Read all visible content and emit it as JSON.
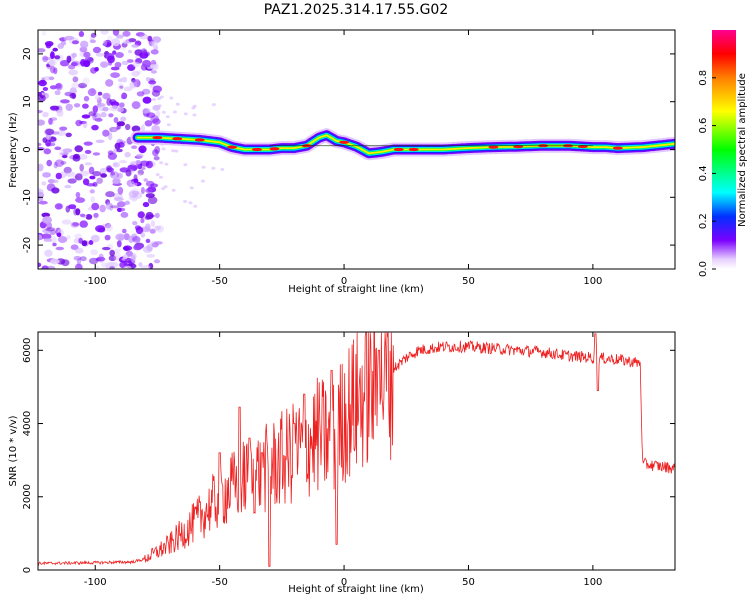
{
  "title": "PAZ1.2025.314.17.55.G02",
  "chart_data": [
    {
      "type": "heatmap",
      "name": "spectrogram",
      "xlabel": "Height of straight line (km)",
      "ylabel": "Frequency (Hz)",
      "xlim": [
        -123,
        133
      ],
      "ylim": [
        -25,
        25
      ],
      "xticks": [
        -100,
        -50,
        0,
        50,
        100
      ],
      "yticks": [
        -20,
        -10,
        0,
        10,
        20
      ],
      "xtick_labels": [
        "-100",
        "-50",
        "0",
        "50",
        "100"
      ],
      "ytick_labels": [
        "-20",
        "-10",
        "0",
        "10",
        "20"
      ],
      "ridge": {
        "description": "dominant spectral peak frequency vs height",
        "x": [
          -83,
          -75,
          -65,
          -58,
          -50,
          -45,
          -40,
          -35,
          -30,
          -25,
          -20,
          -15,
          -10,
          -7,
          -3,
          0,
          5,
          10,
          15,
          20,
          30,
          40,
          50,
          60,
          70,
          80,
          90,
          100,
          105,
          110,
          120,
          133
        ],
        "y": [
          2.5,
          2.5,
          2.2,
          2.0,
          1.5,
          0.5,
          0,
          0,
          0,
          0.3,
          0.3,
          0.8,
          2.5,
          3.0,
          1.8,
          1.5,
          0.6,
          -0.8,
          -0.5,
          0,
          0,
          0,
          0.3,
          0.5,
          0.6,
          0.8,
          0.8,
          0.5,
          0.5,
          0.3,
          0.5,
          1.2
        ]
      },
      "noise_region_x": [
        -123,
        -78
      ],
      "colorbar": {
        "label": "Normalized spectral amplitude",
        "range": [
          0,
          1
        ],
        "ticks": [
          0.0,
          0.2,
          0.4,
          0.6,
          0.8
        ],
        "tick_labels": [
          "0.0",
          "0.2",
          "0.4",
          "0.6",
          "0.8"
        ]
      }
    },
    {
      "type": "line",
      "name": "snr",
      "xlabel": "Height of straight line (km)",
      "ylabel": "SNR (10 * v/v)",
      "xlim": [
        -123,
        133
      ],
      "ylim": [
        0,
        6500
      ],
      "xticks": [
        -100,
        -50,
        0,
        50,
        100
      ],
      "yticks": [
        0,
        2000,
        4000,
        6000
      ],
      "xtick_labels": [
        "-100",
        "-50",
        "0",
        "50",
        "100"
      ],
      "ytick_labels": [
        "0",
        "2000",
        "4000",
        "6000"
      ],
      "color": "#ee2020",
      "envelope": {
        "x": [
          -123,
          -100,
          -85,
          -80,
          -70,
          -60,
          -50,
          -40,
          -30,
          -20,
          -10,
          -5,
          0,
          5,
          10,
          15,
          20,
          25,
          30,
          40,
          50,
          60,
          70,
          80,
          90,
          100,
          110,
          119,
          120,
          125,
          133
        ],
        "y": [
          180,
          200,
          220,
          300,
          700,
          1300,
          2000,
          2500,
          2800,
          3200,
          3700,
          3500,
          4200,
          4600,
          5000,
          5300,
          5500,
          5800,
          6000,
          6100,
          6100,
          6050,
          6000,
          5950,
          5850,
          5800,
          5750,
          5650,
          2900,
          2850,
          2780
        ]
      },
      "spikes": [
        {
          "x": -50,
          "y": 3200
        },
        {
          "x": -42,
          "y": 4450
        },
        {
          "x": -38,
          "y": 3600
        },
        {
          "x": -33,
          "y": 3200
        },
        {
          "x": -30,
          "y": 100
        },
        {
          "x": -20,
          "y": 4000
        },
        {
          "x": -16,
          "y": 4800
        },
        {
          "x": -5,
          "y": 5450
        },
        {
          "x": -3,
          "y": 700
        },
        {
          "x": 14,
          "y": 6000
        },
        {
          "x": 101,
          "y": 6450
        },
        {
          "x": 102,
          "y": 4900
        }
      ]
    }
  ]
}
